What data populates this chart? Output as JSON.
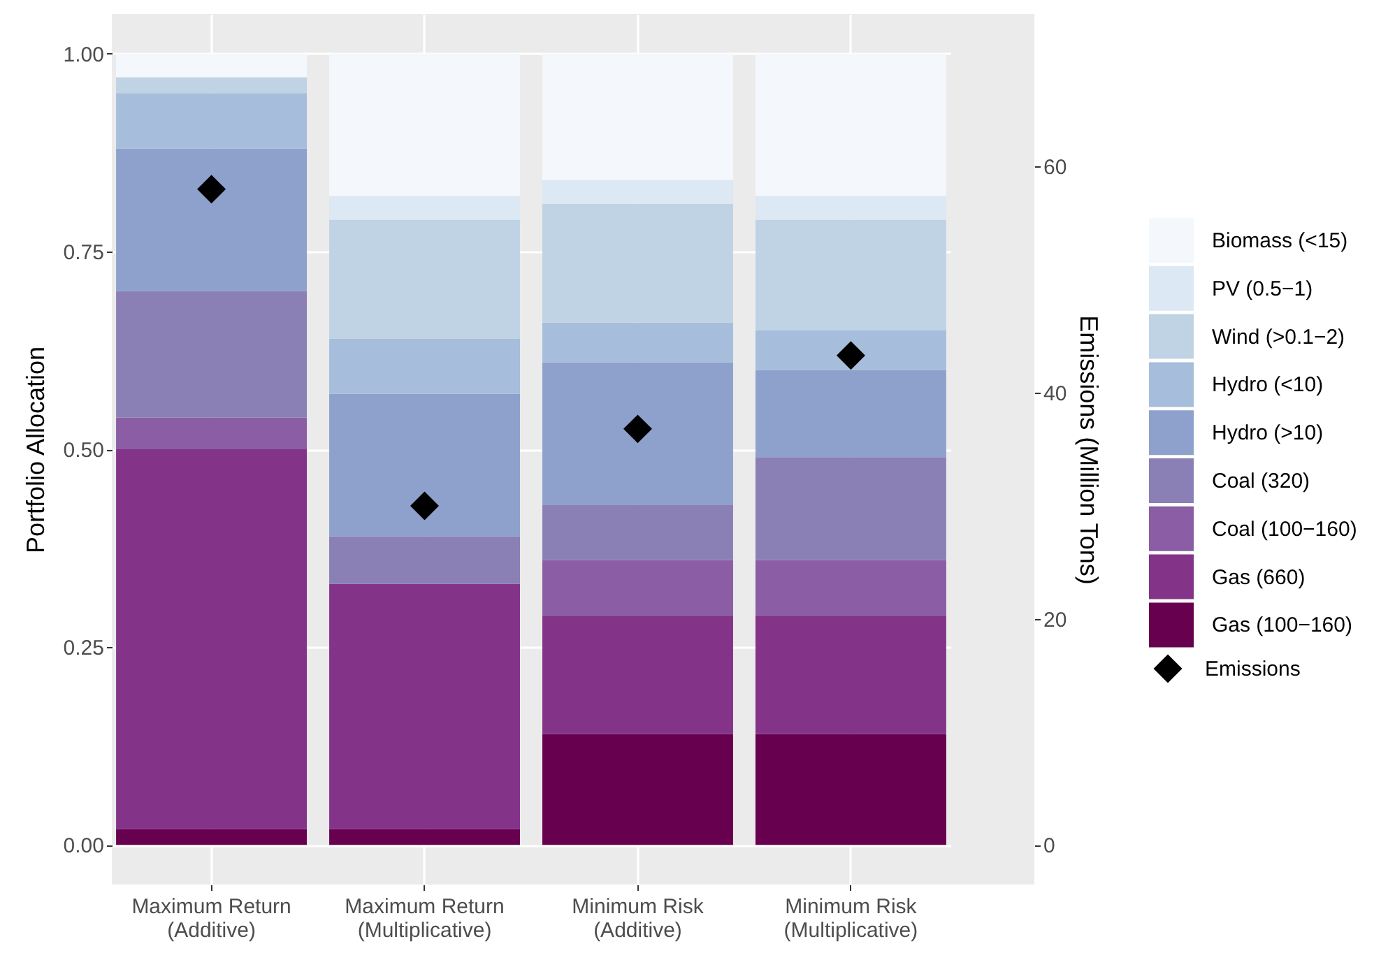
{
  "chart_data": {
    "type": "bar",
    "stacked": true,
    "ylabel": "Portfolio Allocation",
    "y2label": "Emissions (Million Tons)",
    "categories": [
      "Maximum Return\n(Additive)",
      "Maximum Return\n(Multiplicative)",
      "Minimum Risk\n(Additive)",
      "Minimum Risk\n(Multiplicative)"
    ],
    "series": [
      {
        "name": "Gas (100−160)",
        "color": "#67004f",
        "values": [
          0.02,
          0.02,
          0.14,
          0.14
        ]
      },
      {
        "name": "Gas (660)",
        "color": "#833489",
        "values": [
          0.48,
          0.31,
          0.15,
          0.15
        ]
      },
      {
        "name": "Coal (100−160)",
        "color": "#8a5da4",
        "values": [
          0.04,
          0,
          0.07,
          0.07
        ]
      },
      {
        "name": "Coal (320)",
        "color": "#8a80b5",
        "values": [
          0.16,
          0.06,
          0.07,
          0.13
        ]
      },
      {
        "name": "Hydro (>10)",
        "color": "#8ea1cc",
        "values": [
          0.18,
          0.18,
          0.18,
          0.11
        ]
      },
      {
        "name": "Hydro (<10)",
        "color": "#a6bedb",
        "values": [
          0.07,
          0.07,
          0.05,
          0.05
        ]
      },
      {
        "name": "Wind (>0.1−2)",
        "color": "#c0d3e5",
        "values": [
          0.02,
          0.15,
          0.15,
          0.14
        ]
      },
      {
        "name": "PV (0.5−1)",
        "color": "#dce8f4",
        "values": [
          0,
          0.03,
          0.03,
          0.03
        ]
      },
      {
        "name": "Biomass (<15)",
        "color": "#f4f8fc",
        "values": [
          0.03,
          0.18,
          0.16,
          0.18
        ]
      },
      {
        "name": "Emissions",
        "type": "scatter",
        "axis": "y2",
        "marker": "diamond",
        "color": "#000000",
        "values": [
          58,
          30,
          36.8,
          43.3
        ]
      }
    ],
    "ylim": [
      -0.05,
      1.05
    ],
    "yticks": [
      {
        "value": 0,
        "label": "0.00"
      },
      0.25,
      {
        "value": 0.5,
        "label": "0.50"
      },
      0.75,
      {
        "value": 1,
        "label": "1.00"
      }
    ],
    "y2lim": [
      -3.5,
      73.5
    ],
    "y2ticks": [
      0,
      20,
      40,
      60
    ],
    "grid": true,
    "legend": "right"
  }
}
